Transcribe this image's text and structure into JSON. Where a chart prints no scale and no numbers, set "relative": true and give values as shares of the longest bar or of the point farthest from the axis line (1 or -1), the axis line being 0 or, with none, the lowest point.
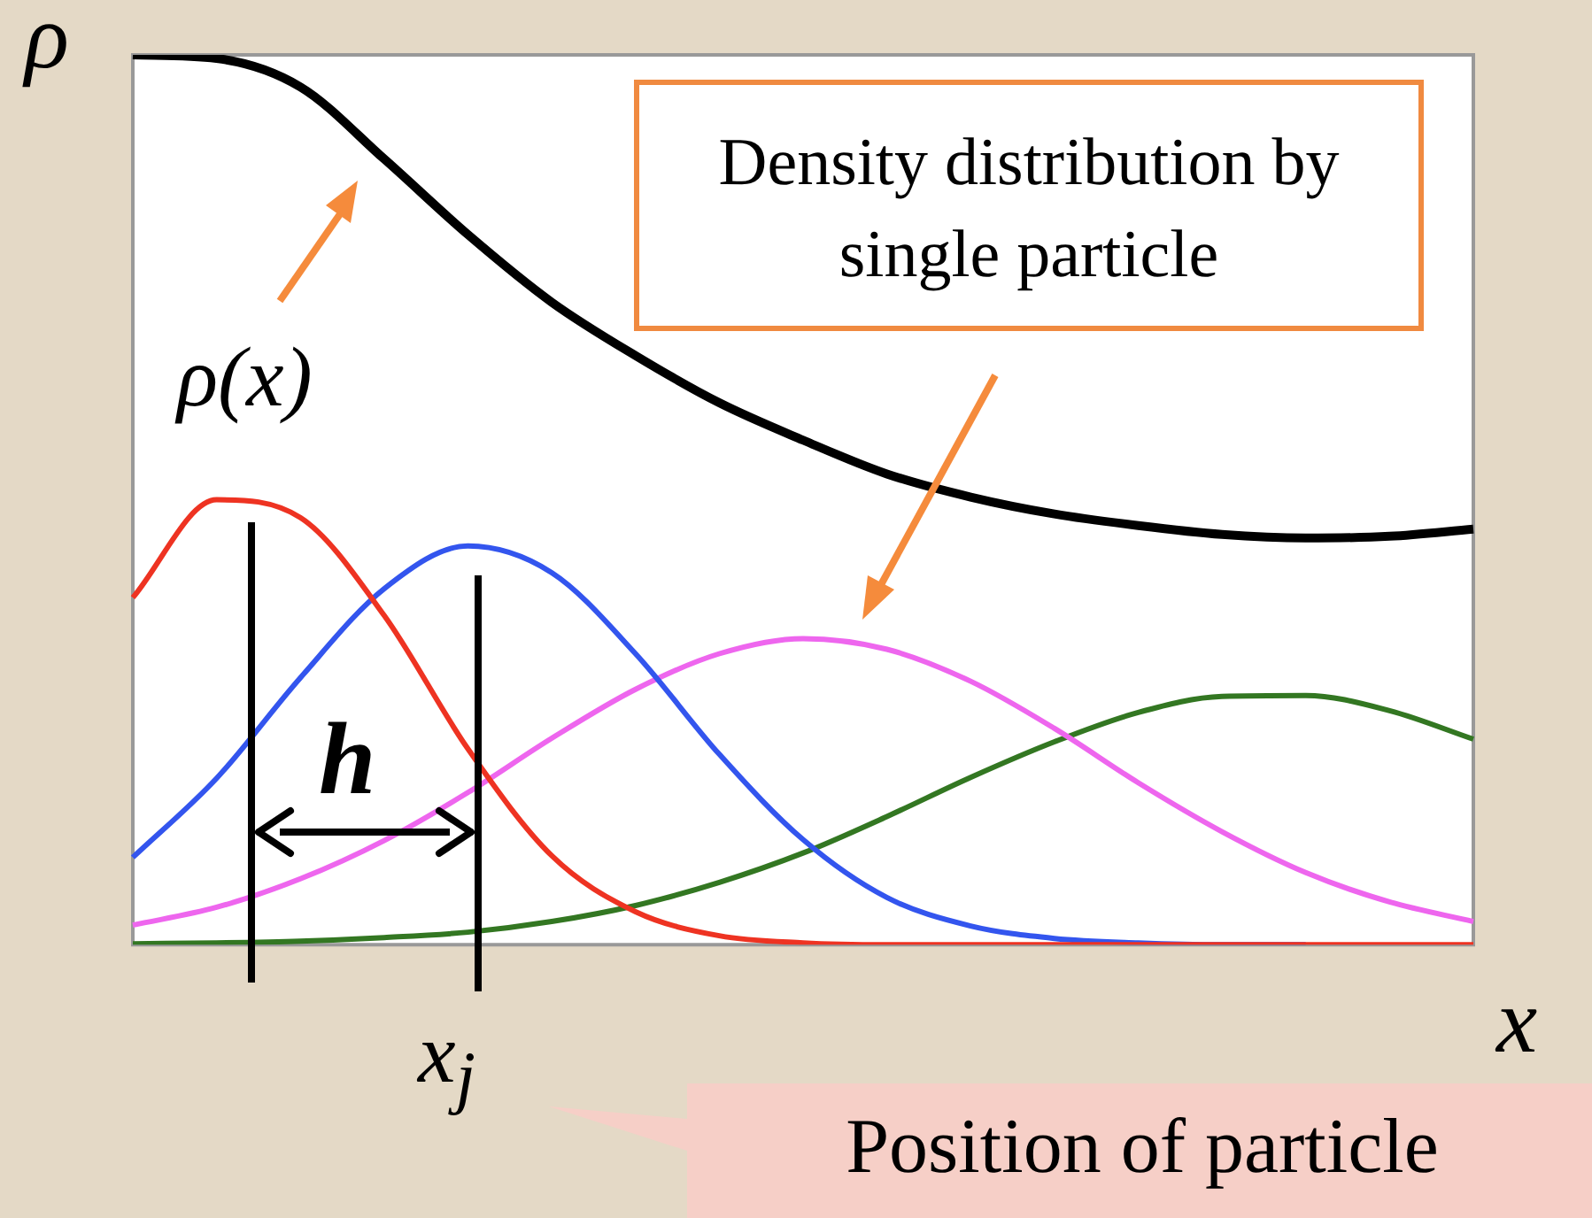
{
  "chart_data": {
    "type": "line",
    "relative": true,
    "xlabel": "x",
    "ylabel": "ρ",
    "categories": [
      null,
      null,
      null,
      null,
      null,
      null,
      null,
      null,
      null,
      null,
      null,
      null,
      null,
      null,
      null,
      null,
      null
    ],
    "series": [
      {
        "color": "#000000",
        "values": [
          1.0,
          0.996,
          0.964,
          0.883,
          0.798,
          0.722,
          0.662,
          0.609,
          0.567,
          0.529,
          0.503,
          0.484,
          0.471,
          0.461,
          0.457,
          0.459,
          0.467
        ]
      },
      {
        "color": "#ee3322",
        "values": [
          0.39,
          0.5,
          0.48,
          0.37,
          0.22,
          0.1,
          0.037,
          0.01,
          0.002,
          0,
          0,
          0,
          0,
          0,
          0,
          0,
          0
        ]
      },
      {
        "color": "#3355ee",
        "values": [
          0.098,
          0.187,
          0.3,
          0.4,
          0.448,
          0.418,
          0.327,
          0.214,
          0.118,
          0.053,
          0.021,
          0.007,
          0.002,
          0,
          0,
          null,
          null
        ]
      },
      {
        "color": "#ee66ee",
        "values": [
          0.022,
          0.042,
          0.074,
          0.117,
          0.171,
          0.232,
          0.287,
          0.327,
          0.344,
          0.332,
          0.296,
          0.243,
          0.182,
          0.127,
          0.081,
          0.048,
          0.026
        ]
      },
      {
        "color": "#337722",
        "values": [
          0.001,
          0.002,
          0.004,
          0.008,
          0.014,
          0.026,
          0.044,
          0.07,
          0.103,
          0.144,
          0.188,
          0.228,
          0.261,
          0.279,
          0.28,
          0.263,
          0.231
        ]
      }
    ],
    "annotations": [
      "ρ(x)",
      "h",
      "x$_{j}$",
      "Density distribution by single particle",
      "Position of particle"
    ]
  }
}
